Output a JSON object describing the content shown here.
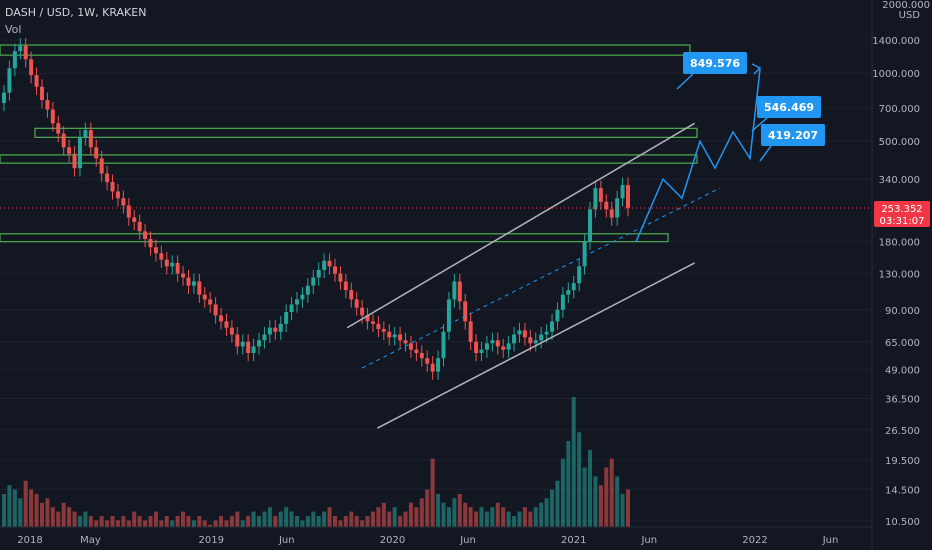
{
  "header": {
    "symbol_line": "DASH / USD, 1W, KRAKEN",
    "volume_label": "Vol"
  },
  "price_axis": {
    "currency": "USD",
    "top_label": "2000.000",
    "ticks": [
      "1400.000",
      "1000.000",
      "700.000",
      "500.000",
      "340.000",
      "180.000",
      "130.000",
      "90.000",
      "65.000",
      "49.000",
      "36.500",
      "26.500",
      "19.500",
      "14.500",
      "10.500"
    ]
  },
  "time_axis": {
    "labels": [
      "2018",
      "May",
      "2019",
      "Jun",
      "2020",
      "Jun",
      "2021",
      "Jun",
      "2022",
      "Jun"
    ]
  },
  "current_price": {
    "value": "253.352",
    "countdown": "03:31:07",
    "color": "#f23645"
  },
  "callouts": [
    {
      "value": "849.576"
    },
    {
      "value": "546.469"
    },
    {
      "value": "419.207"
    }
  ],
  "colors": {
    "up": "#26a69a",
    "down": "#ef5350",
    "zone": "#4caf50",
    "channel": "#b2b5be",
    "projection": "#2196f3",
    "background": "#131722"
  },
  "chart_data": {
    "type": "candlestick",
    "scale": "log",
    "y_range": [
      10.5,
      2000
    ],
    "x_range": [
      "2017-12",
      "2022-07"
    ],
    "horizontal_zones": [
      {
        "from": 1200,
        "to": 1330
      },
      {
        "from": 520,
        "to": 570
      },
      {
        "from": 400,
        "to": 435
      },
      {
        "from": 180,
        "to": 195
      }
    ],
    "ohlc_close_series": [
      820,
      1050,
      1250,
      1320,
      1150,
      980,
      870,
      760,
      690,
      600,
      540,
      470,
      440,
      380,
      520,
      560,
      470,
      420,
      360,
      330,
      300,
      280,
      260,
      230,
      220,
      200,
      185,
      170,
      160,
      150,
      140,
      145,
      130,
      125,
      115,
      120,
      105,
      100,
      95,
      85,
      80,
      75,
      70,
      62,
      65,
      58,
      62,
      66,
      70,
      75,
      72,
      78,
      88,
      95,
      100,
      105,
      115,
      125,
      135,
      148,
      140,
      130,
      120,
      110,
      100,
      92,
      85,
      80,
      78,
      74,
      72,
      68,
      70,
      66,
      64,
      60,
      58,
      55,
      52,
      48,
      55,
      72,
      100,
      120,
      98,
      80,
      65,
      58,
      60,
      64,
      66,
      62,
      60,
      64,
      70,
      73,
      68,
      64,
      66,
      70,
      72,
      80,
      90,
      105,
      110,
      118,
      140,
      180,
      250,
      310,
      270,
      250,
      230,
      280,
      320,
      253
    ],
    "volume_series": [
      18,
      20,
      19,
      17,
      21,
      19,
      18,
      16,
      17,
      15,
      14,
      16,
      15,
      14,
      13,
      14,
      13,
      12,
      13,
      12,
      13,
      12,
      13,
      12,
      14,
      13,
      12,
      13,
      14,
      12,
      13,
      12,
      13,
      14,
      13,
      12,
      13,
      12,
      11,
      12,
      13,
      12,
      13,
      14,
      12,
      13,
      14,
      13,
      14,
      15,
      13,
      14,
      15,
      14,
      13,
      12,
      13,
      14,
      13,
      14,
      15,
      13,
      12,
      13,
      14,
      13,
      12,
      13,
      14,
      15,
      16,
      14,
      15,
      13,
      14,
      16,
      15,
      17,
      19,
      26,
      18,
      16,
      15,
      17,
      18,
      16,
      15,
      14,
      15,
      14,
      15,
      16,
      15,
      14,
      13,
      14,
      15,
      14,
      15,
      16,
      17,
      19,
      21,
      26,
      30,
      40,
      32,
      24,
      28,
      22,
      20,
      24,
      26,
      22,
      18,
      19
    ],
    "channel_lines": [
      {
        "from_date": "2019-10",
        "from_price": 75,
        "to_date": "2021-09",
        "to_price": 600
      },
      {
        "from_date": "2019-12",
        "from_price": 27,
        "to_date": "2021-09",
        "to_price": 145
      }
    ],
    "projection_path_prices": [
      180,
      340,
      280,
      500,
      380,
      550,
      420,
      1040
    ]
  }
}
